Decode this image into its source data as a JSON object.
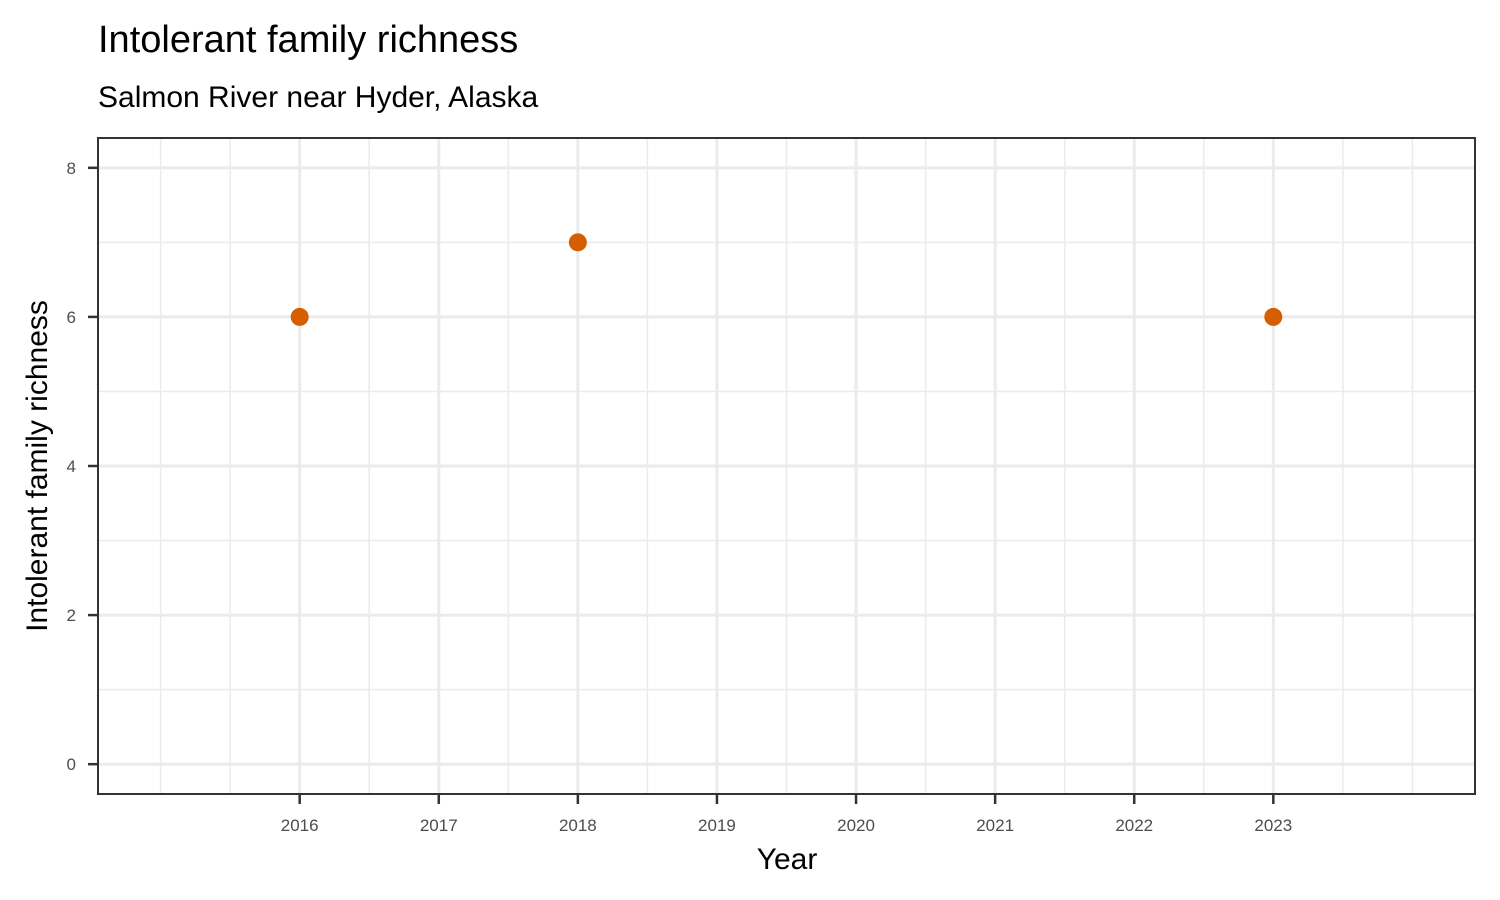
{
  "chart_data": {
    "type": "scatter",
    "title": "Intolerant family richness",
    "subtitle": "Salmon River near Hyder, Alaska",
    "xlabel": "Year",
    "ylabel": "Intolerant family richness",
    "x": [
      2016,
      2018,
      2023
    ],
    "y": [
      6,
      7,
      6
    ],
    "xlim": [
      2014.55,
      2024.45
    ],
    "ylim": [
      -0.4,
      8.4
    ],
    "x_ticks": [
      2016,
      2017,
      2018,
      2019,
      2020,
      2021,
      2022,
      2023
    ],
    "x_tick_labels": [
      "2016",
      "2017",
      "2018",
      "2019",
      "2020",
      "2021",
      "2022",
      "2023"
    ],
    "x_minor_ticks": [
      2015,
      2015.5,
      2016.5,
      2017.5,
      2018.5,
      2019.5,
      2020.5,
      2021.5,
      2022.5,
      2023.5,
      2024
    ],
    "y_ticks": [
      0,
      2,
      4,
      6,
      8
    ],
    "y_tick_labels": [
      "0",
      "2",
      "4",
      "6",
      "8"
    ],
    "y_minor_ticks": [
      1,
      3,
      5,
      7
    ],
    "grid": true,
    "point_color": "#d55e00",
    "legend": "none"
  }
}
